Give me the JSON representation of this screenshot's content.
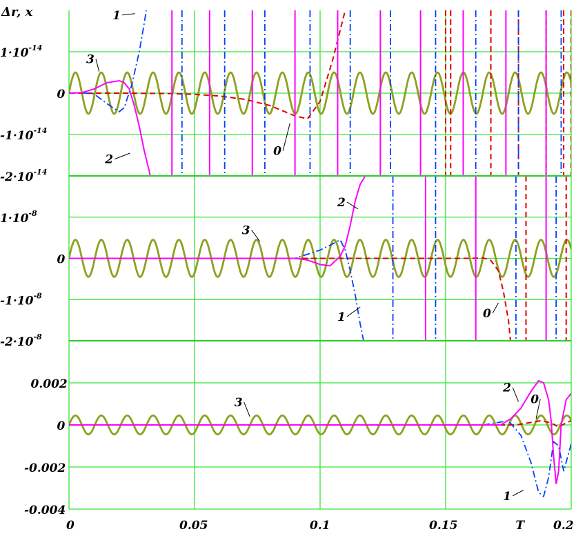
{
  "chart_data": {
    "type": "line",
    "ylabel": "Δr, x",
    "x_ticks": [
      "0",
      "0.05",
      "0.1",
      "0.15",
      "T",
      "0.2"
    ],
    "xlim": [
      0,
      0.2
    ],
    "colors": {
      "0": "#e00000",
      "1": "#0040ff",
      "2": "#ff00ff",
      "3": "#8fa020",
      "grid": "#33e633"
    },
    "panels": [
      {
        "name": "top",
        "ylim": [
          -2e-14,
          2e-14
        ],
        "y_ticks": [
          {
            "value": 1e-14,
            "mant": "1·10",
            "exp": "-14"
          },
          {
            "value": 0,
            "mant": "0",
            "exp": ""
          },
          {
            "value": -1e-14,
            "mant": "-1·10",
            "exp": "-14"
          },
          {
            "value": -2e-14,
            "mant": "-2·10",
            "exp": "-14"
          }
        ],
        "series": [
          {
            "name": "3",
            "kind": "sine",
            "period": 0.0103,
            "amplitude": 5e-15
          },
          {
            "name": "0",
            "kind": "points",
            "x": [
              0,
              0.02,
              0.04,
              0.05,
              0.06,
              0.07,
              0.08,
              0.09,
              0.095,
              0.1,
              0.105,
              0.11,
              0.115
            ],
            "y": [
              0,
              0,
              -1e-16,
              -3e-16,
              -7e-16,
              -1.5e-15,
              -3e-15,
              -5.5e-15,
              -6.2e-15,
              -2e-15,
              8e-15,
              2e-14,
              2.5e-14
            ]
          },
          {
            "name": "0",
            "kind": "spikes",
            "x": [
              0.15,
              0.152,
              0.168,
              0.179,
              0.19,
              0.197,
              0.2
            ]
          },
          {
            "name": "1",
            "kind": "points",
            "x": [
              0,
              0.005,
              0.01,
              0.015,
              0.02,
              0.022,
              0.025,
              0.028,
              0.03,
              0.032
            ],
            "y": [
              0,
              1e-16,
              -2e-16,
              -2.5e-15,
              -4.5e-15,
              -3.5e-15,
              2e-15,
              1e-14,
              1.7e-14,
              2.5e-14
            ]
          },
          {
            "name": "1",
            "kind": "spikes",
            "x": [
              0.045,
              0.062,
              0.078,
              0.096,
              0.112,
              0.128,
              0.146,
              0.162,
              0.179,
              0.196
            ]
          },
          {
            "name": "2",
            "kind": "points",
            "x": [
              0,
              0.005,
              0.01,
              0.015,
              0.02,
              0.022,
              0.024,
              0.026,
              0.028,
              0.03,
              0.032,
              0.034
            ],
            "y": [
              0,
              1e-16,
              1e-15,
              2.5e-15,
              3e-15,
              2.5e-15,
              1e-15,
              -3e-15,
              -8e-15,
              -1.4e-14,
              -1.9e-14,
              -2.5e-14
            ]
          },
          {
            "name": "2",
            "kind": "spikes",
            "x": [
              0.041,
              0.056,
              0.073,
              0.09,
              0.107,
              0.124,
              0.14,
              0.157,
              0.174,
              0.19
            ]
          }
        ],
        "labels": [
          {
            "text": "3",
            "x": 0.0085,
            "y": 7.6e-15,
            "tx": 0.012,
            "ty": 5.2e-15
          },
          {
            "text": "1",
            "x": 0.019,
            "y": 1.82e-14,
            "tx": 0.0263,
            "ty": 1.92e-14
          },
          {
            "text": "2",
            "x": 0.016,
            "y": -1.66e-14,
            "tx": 0.0243,
            "ty": -1.45e-14
          },
          {
            "text": "0",
            "x": 0.083,
            "y": -1.46e-14,
            "tx": 0.088,
            "ty": -7.3e-15
          }
        ]
      },
      {
        "name": "middle",
        "ylim": [
          -2e-08,
          2e-08
        ],
        "y_ticks": [
          {
            "value": 1e-08,
            "mant": "1·10",
            "exp": "-8"
          },
          {
            "value": 0,
            "mant": "0",
            "exp": ""
          },
          {
            "value": -1e-08,
            "mant": "-1·10",
            "exp": "-8"
          },
          {
            "value": -2e-08,
            "mant": "-2·10",
            "exp": "-8"
          }
        ],
        "series": [
          {
            "name": "3",
            "kind": "sine",
            "period": 0.0103,
            "amplitude": 4.5e-09
          },
          {
            "name": "0",
            "kind": "points",
            "x": [
              0,
              0.15,
              0.16,
              0.165,
              0.168,
              0.171,
              0.173,
              0.175,
              0.176
            ],
            "y": [
              0,
              0,
              0,
              1e-10,
              -5e-10,
              -3e-09,
              -8e-09,
              -1.5e-08,
              -2.1e-08
            ]
          },
          {
            "name": "0",
            "kind": "spikes",
            "x": [
              0.182,
              0.198
            ]
          },
          {
            "name": "1",
            "kind": "points",
            "x": [
              0,
              0.09,
              0.1,
              0.105,
              0.108,
              0.11,
              0.112,
              0.114,
              0.116,
              0.118
            ],
            "y": [
              0,
              0,
              2e-09,
              3.5e-09,
              4.5e-09,
              2e-09,
              -3e-09,
              -9e-09,
              -1.6e-08,
              -2.2e-08
            ]
          },
          {
            "name": "1",
            "kind": "spikes",
            "x": [
              0.129,
              0.146,
              0.178,
              0.194
            ]
          },
          {
            "name": "2",
            "kind": "points",
            "x": [
              0,
              0.09,
              0.095,
              0.1,
              0.104,
              0.108,
              0.11,
              0.112,
              0.114,
              0.116,
              0.118,
              0.12
            ],
            "y": [
              0,
              0,
              -4e-10,
              -1.5e-09,
              -1.8e-09,
              5e-10,
              3e-09,
              8e-09,
              1.4e-08,
              1.8e-08,
              2e-08,
              2.1e-08
            ]
          },
          {
            "name": "2",
            "kind": "spikes",
            "x": [
              0.142,
              0.162,
              0.19
            ]
          }
        ],
        "labels": [
          {
            "text": "3",
            "x": 0.0705,
            "y": 6.2e-09,
            "tx": 0.076,
            "ty": 4.1e-09
          },
          {
            "text": "2",
            "x": 0.1085,
            "y": 1.3e-08,
            "tx": 0.115,
            "ty": 1.2e-08
          },
          {
            "text": "1",
            "x": 0.1085,
            "y": -1.48e-08,
            "tx": 0.116,
            "ty": -1.18e-08
          },
          {
            "text": "0",
            "x": 0.1665,
            "y": -1.4e-08,
            "tx": 0.171,
            "ty": -1.08e-08
          }
        ]
      },
      {
        "name": "bottom",
        "ylim": [
          -0.004,
          0.004
        ],
        "y_ticks": [
          {
            "value": 0.002,
            "mant": "0.002",
            "exp": ""
          },
          {
            "value": 0,
            "mant": "0",
            "exp": ""
          },
          {
            "value": -0.002,
            "mant": "-0.002",
            "exp": ""
          },
          {
            "value": -0.004,
            "mant": "-0.004",
            "exp": ""
          }
        ],
        "series": [
          {
            "name": "3",
            "kind": "sine",
            "period": 0.0103,
            "amplitude": 0.00045
          },
          {
            "name": "0",
            "kind": "points",
            "x": [
              0,
              0.178,
              0.183,
              0.188,
              0.192,
              0.195,
              0.198,
              0.2
            ],
            "y": [
              0,
              0,
              0.0001,
              0.0002,
              0.0001,
              -0.0001,
              0.0001,
              0.0002
            ]
          },
          {
            "name": "1",
            "kind": "points",
            "x": [
              0,
              0.165,
              0.17,
              0.175,
              0.18,
              0.184,
              0.187,
              0.189,
              0.191,
              0.193,
              0.195,
              0.197,
              0.2
            ],
            "y": [
              0,
              0,
              0.0001,
              0.0002,
              -0.0005,
              -0.0018,
              -0.0032,
              -0.0034,
              -0.0025,
              -0.0008,
              -0.001,
              -0.0022,
              -0.0009
            ]
          },
          {
            "name": "2",
            "kind": "points",
            "x": [
              0,
              0.172,
              0.176,
              0.18,
              0.184,
              0.187,
              0.189,
              0.191,
              0.192,
              0.193,
              0.194,
              0.195,
              0.196,
              0.198,
              0.2
            ],
            "y": [
              0,
              0,
              0.0003,
              0.0008,
              0.0016,
              0.0021,
              0.002,
              0.0012,
              0.0002,
              -0.0015,
              -0.0028,
              -0.0022,
              0,
              0.0012,
              0.0015
            ]
          }
        ],
        "labels": [
          {
            "text": "3",
            "x": 0.0675,
            "y": 0.00095,
            "tx": 0.072,
            "ty": 0.0004
          },
          {
            "text": "2",
            "x": 0.1745,
            "y": 0.00165,
            "tx": 0.179,
            "ty": 0.0011
          },
          {
            "text": "0",
            "x": 0.1855,
            "y": 0.0011,
            "tx": 0.186,
            "ty": 0.0003
          },
          {
            "text": "1",
            "x": 0.1745,
            "y": -0.0035,
            "tx": 0.181,
            "ty": -0.0031
          }
        ]
      }
    ]
  }
}
